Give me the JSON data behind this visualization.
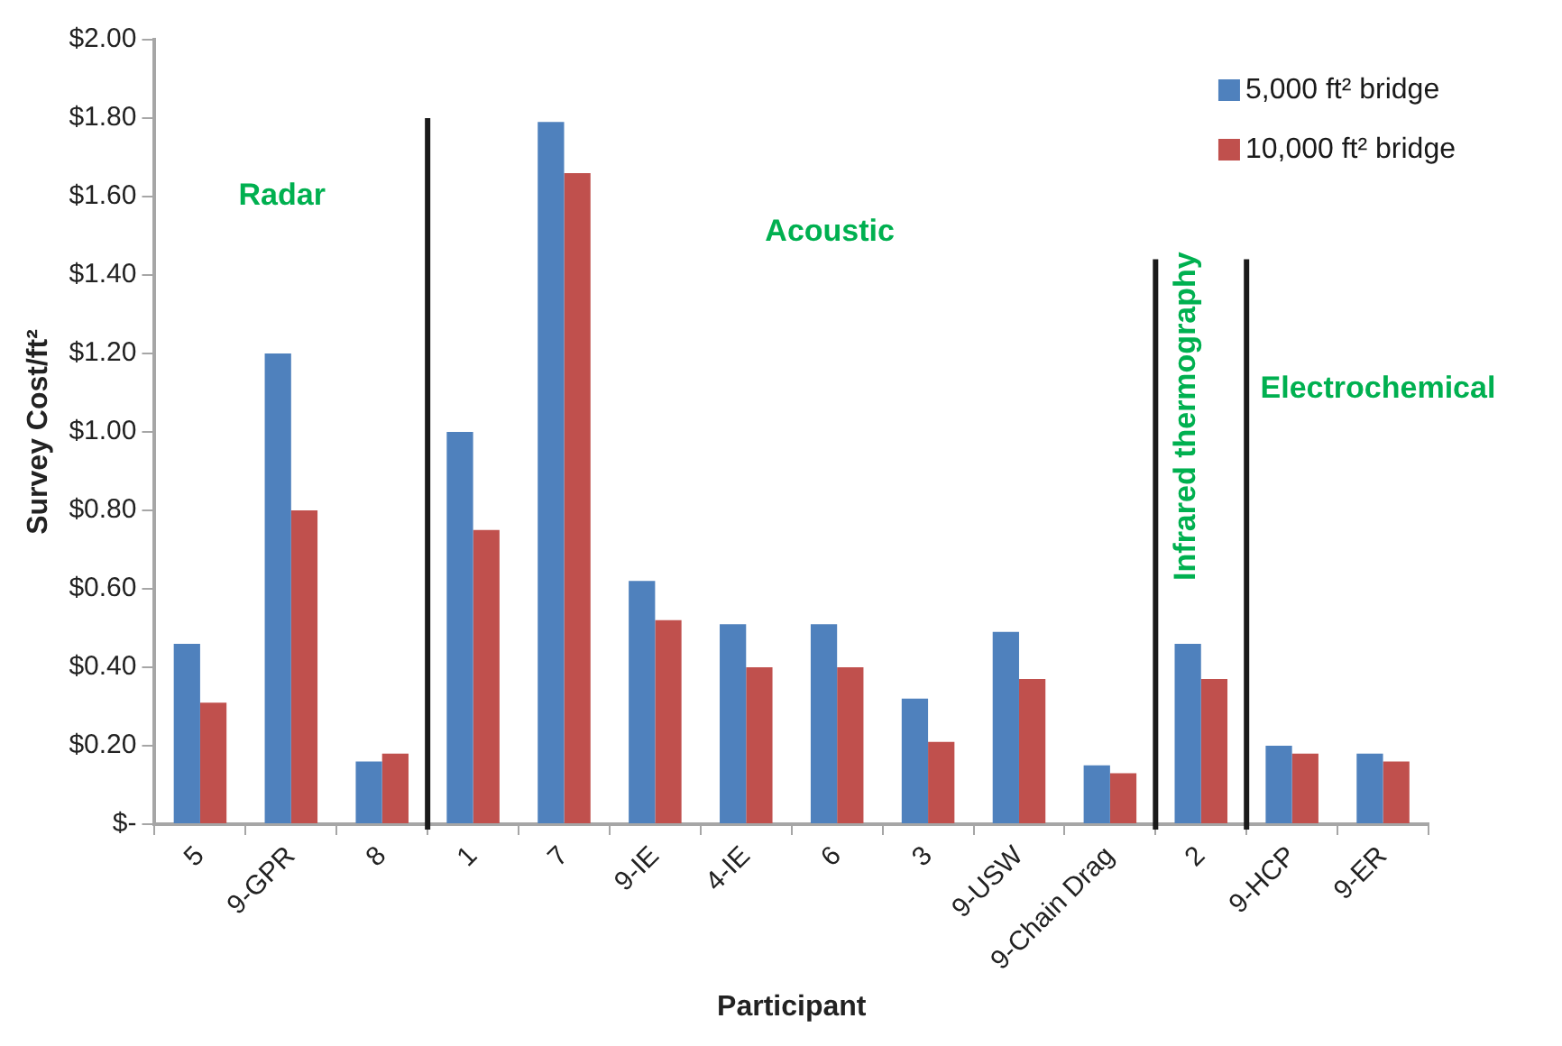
{
  "chart_data": {
    "type": "bar",
    "xlabel": "Participant",
    "ylabel": "Survey Cost/ft²",
    "categories": [
      "5",
      "9-GPR",
      "8",
      "1",
      "7",
      "9-IE",
      "4-IE",
      "6",
      "3",
      "9-USW",
      "9-Chain Drag",
      "2",
      "9-HCP",
      "9-ER"
    ],
    "series": [
      {
        "name": "5,000 ft² bridge",
        "color": "#4f81bd",
        "values": [
          0.46,
          1.2,
          0.16,
          1.0,
          1.79,
          0.62,
          0.51,
          0.51,
          0.32,
          0.49,
          0.15,
          0.46,
          0.2,
          0.18
        ]
      },
      {
        "name": "10,000 ft² bridge",
        "color": "#c0504d",
        "values": [
          0.31,
          0.8,
          0.18,
          0.75,
          1.66,
          0.52,
          0.4,
          0.4,
          0.21,
          0.37,
          0.13,
          0.37,
          0.18,
          0.16
        ]
      }
    ],
    "ylim": [
      0,
      2
    ],
    "yticks": [
      {
        "value": 0,
        "label": "$-"
      },
      {
        "value": 0.2,
        "label": "$0.20"
      },
      {
        "value": 0.4,
        "label": "$0.40"
      },
      {
        "value": 0.6,
        "label": "$0.60"
      },
      {
        "value": 0.8,
        "label": "$0.80"
      },
      {
        "value": 1.0,
        "label": "$1.00"
      },
      {
        "value": 1.2,
        "label": "$1.20"
      },
      {
        "value": 1.4,
        "label": "$1.40"
      },
      {
        "value": 1.6,
        "label": "$1.60"
      },
      {
        "value": 1.8,
        "label": "$1.80"
      },
      {
        "value": 2.0,
        "label": "$2.00"
      }
    ],
    "annotations": [
      "Radar",
      "Acoustic",
      "Infrared thermography",
      "Electrochemical"
    ],
    "grid": false,
    "legend": "top right"
  }
}
